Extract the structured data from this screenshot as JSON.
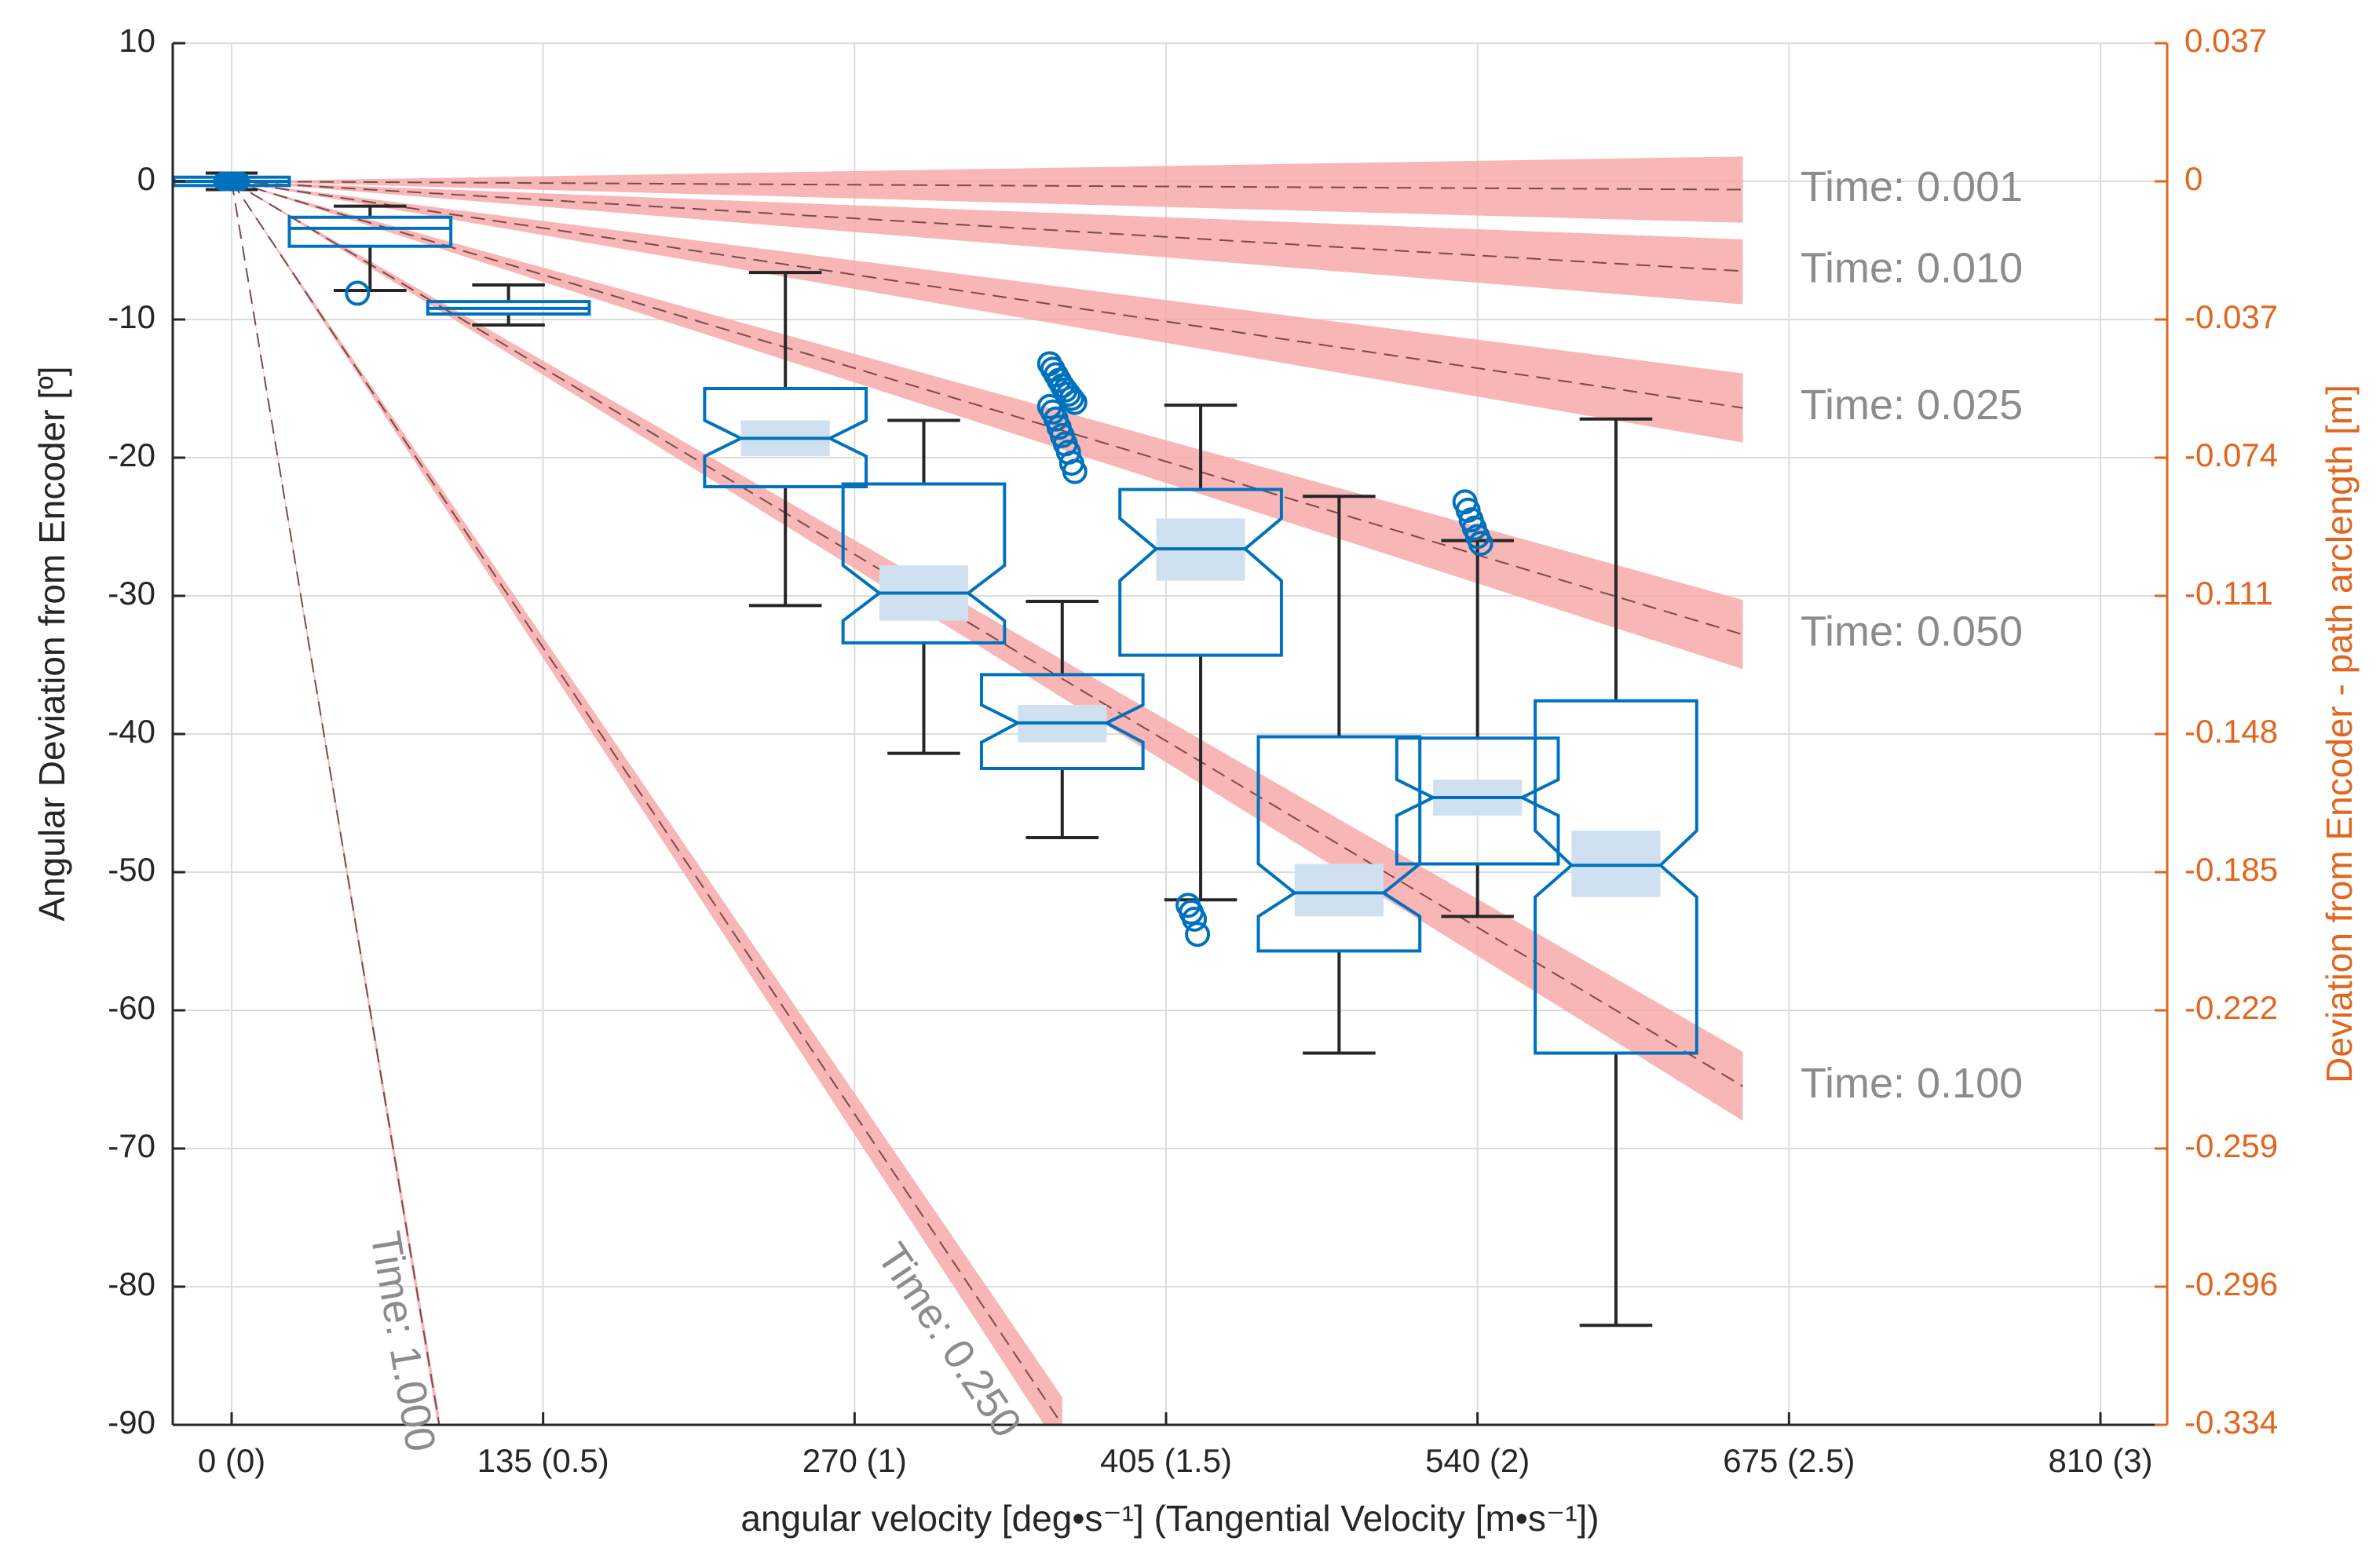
{
  "chart_data": {
    "type": "boxplot",
    "xlabel": "angular  velocity  [deg•s⁻¹]  (Tangential  Velocity  [m•s⁻¹])",
    "ylabel": "Angular  Deviation  from  Encoder  [º]",
    "ylabel_right": "Deviation from Encoder - path arclength [m]",
    "xlim": [
      -10,
      830
    ],
    "ylim": [
      -90,
      10
    ],
    "grid": true,
    "x_ticks": [
      {
        "value": 0,
        "label": "0 (0)"
      },
      {
        "value": 135,
        "label": "135 (0.5)"
      },
      {
        "value": 270,
        "label": "270 (1)"
      },
      {
        "value": 405,
        "label": "405 (1.5)"
      },
      {
        "value": 540,
        "label": "540 (2)"
      },
      {
        "value": 675,
        "label": "675 (2.5)"
      },
      {
        "value": 810,
        "label": "810 (3)"
      }
    ],
    "y_ticks_left": [
      {
        "value": 10,
        "label": "10"
      },
      {
        "value": 0,
        "label": "0"
      },
      {
        "value": -10,
        "label": "-10"
      },
      {
        "value": -20,
        "label": "-20"
      },
      {
        "value": -30,
        "label": "-30"
      },
      {
        "value": -40,
        "label": "-40"
      },
      {
        "value": -50,
        "label": "-50"
      },
      {
        "value": -60,
        "label": "-60"
      },
      {
        "value": -70,
        "label": "-70"
      },
      {
        "value": -80,
        "label": "-80"
      },
      {
        "value": -90,
        "label": "-90"
      }
    ],
    "y_ticks_right": [
      {
        "value": 10,
        "label": "0.037"
      },
      {
        "value": 0,
        "label": "0"
      },
      {
        "value": -10,
        "label": "-0.037"
      },
      {
        "value": -20,
        "label": "-0.074"
      },
      {
        "value": -30,
        "label": "-0.111"
      },
      {
        "value": -40,
        "label": "-0.148"
      },
      {
        "value": -50,
        "label": "-0.185"
      },
      {
        "value": -60,
        "label": "-0.222"
      },
      {
        "value": -70,
        "label": "-0.259"
      },
      {
        "value": -80,
        "label": "-0.296"
      },
      {
        "value": -90,
        "label": "-0.334"
      }
    ],
    "time_lines": [
      {
        "label": "Time: 0.001",
        "time": 0.001,
        "x_end": 655,
        "center_end": -0.6,
        "band_upper_end": 1.8,
        "band_lower_end": -3.0,
        "label_x": 680,
        "label_y": -0.6,
        "rotated": false
      },
      {
        "label": "Time: 0.010",
        "time": 0.01,
        "x_end": 655,
        "center_end": -6.5,
        "band_upper_end": -4.2,
        "band_lower_end": -8.9,
        "label_x": 680,
        "label_y": -6.5,
        "rotated": false
      },
      {
        "label": "Time: 0.025",
        "time": 0.025,
        "x_end": 655,
        "center_end": -16.4,
        "band_upper_end": -13.9,
        "band_lower_end": -18.9,
        "label_x": 680,
        "label_y": -16.4,
        "rotated": false
      },
      {
        "label": "Time: 0.050",
        "time": 0.05,
        "x_end": 655,
        "center_end": -32.8,
        "band_upper_end": -30.3,
        "band_lower_end": -35.3,
        "label_x": 680,
        "label_y": -32.8,
        "rotated": false
      },
      {
        "label": "Time: 0.100",
        "time": 0.1,
        "x_end": 655,
        "center_end": -65.5,
        "band_upper_end": -63.0,
        "band_lower_end": -68.0,
        "label_x": 680,
        "label_y": -65.5,
        "rotated": false
      },
      {
        "label": "Time: 0.250",
        "time": 0.25,
        "x_end": 360,
        "center_end": -90.0,
        "band_upper_end": -88.0,
        "band_lower_end": -92.0,
        "label_x": 310,
        "label_y": -84,
        "rotated": true
      },
      {
        "label": "Time: 1.000",
        "time": 1.0,
        "x_end": 90,
        "center_end": -90.0,
        "band_upper_end": -89.3,
        "band_lower_end": -90.7,
        "label_x": 73,
        "label_y": -84,
        "rotated": true
      }
    ],
    "boxes": [
      {
        "x": 0,
        "width": 20,
        "q1": -0.3,
        "median": 0,
        "q3": 0.3,
        "whisker_low": -0.6,
        "whisker_high": 0.6,
        "notch_low": -0.2,
        "notch_high": 0.2,
        "notched": false,
        "outliers": []
      },
      {
        "x": 60,
        "width": 28,
        "q1": -4.7,
        "median": -3.4,
        "q3": -2.6,
        "whisker_low": -7.9,
        "whisker_high": -1.8,
        "notch_low": -3.7,
        "notch_high": -3.1,
        "notched": false,
        "outliers": [
          -8.1
        ]
      },
      {
        "x": 120,
        "width": 28,
        "q1": -9.6,
        "median": -9.2,
        "q3": -8.7,
        "whisker_low": -10.4,
        "whisker_high": -7.5,
        "notch_low": -9.4,
        "notch_high": -9.0,
        "notched": false,
        "outliers": []
      },
      {
        "x": 240,
        "width": 28,
        "q1": -22.1,
        "median": -18.6,
        "q3": -15.0,
        "whisker_low": -30.7,
        "whisker_high": -6.6,
        "notch_low": -19.9,
        "notch_high": -17.3,
        "notched": true,
        "outliers": []
      },
      {
        "x": 300,
        "width": 28,
        "q1": -33.4,
        "median": -29.8,
        "q3": -21.9,
        "whisker_low": -41.4,
        "whisker_high": -17.3,
        "notch_low": -31.8,
        "notch_high": -27.8,
        "notched": true,
        "outliers": []
      },
      {
        "x": 360,
        "width": 28,
        "q1": -42.5,
        "median": -39.2,
        "q3": -35.7,
        "whisker_low": -47.5,
        "whisker_high": -30.4,
        "notch_low": -40.6,
        "notch_high": -37.9,
        "notched": true,
        "outliers": [
          -13.2,
          -13.6,
          -14.0,
          -14.4,
          -14.8,
          -15.1,
          -15.4,
          -15.7,
          -16.0,
          -16.3,
          -16.7,
          -17.2,
          -17.8,
          -18.4,
          -19.0,
          -19.6,
          -20.4,
          -21.0
        ]
      },
      {
        "x": 420,
        "width": 28,
        "q1": -34.3,
        "median": -26.6,
        "q3": -22.3,
        "whisker_low": -52.0,
        "whisker_high": -16.2,
        "notch_low": -28.9,
        "notch_high": -24.4,
        "notched": true,
        "outliers": [
          -52.4,
          -52.9,
          -53.4,
          -54.5
        ]
      },
      {
        "x": 480,
        "width": 28,
        "q1": -55.7,
        "median": -51.5,
        "q3": -40.2,
        "whisker_low": -63.1,
        "whisker_high": -22.8,
        "notch_low": -53.2,
        "notch_high": -49.4,
        "notched": true,
        "outliers": []
      },
      {
        "x": 540,
        "width": 28,
        "q1": -49.4,
        "median": -44.6,
        "q3": -40.3,
        "whisker_low": -53.2,
        "whisker_high": -26.0,
        "notch_low": -45.9,
        "notch_high": -43.3,
        "notched": true,
        "outliers": [
          -23.2,
          -23.8,
          -24.5,
          -25.1,
          -25.7,
          -26.2
        ]
      },
      {
        "x": 600,
        "width": 28,
        "q1": -63.1,
        "median": -49.5,
        "q3": -37.6,
        "whisker_low": -82.8,
        "whisker_high": -17.2,
        "notch_low": -51.8,
        "notch_high": -47.0,
        "notched": true,
        "outliers": []
      }
    ],
    "colors": {
      "box": "#0072bd",
      "box_fill": "#cfe1f1",
      "whisker": "#262626",
      "band": "#f7a9a9",
      "dash": "#7a4a4a",
      "right_axis": "#e1661f",
      "grid": "#dcdcdc",
      "axis": "#262626",
      "time_label": "#8c8c8c"
    }
  }
}
